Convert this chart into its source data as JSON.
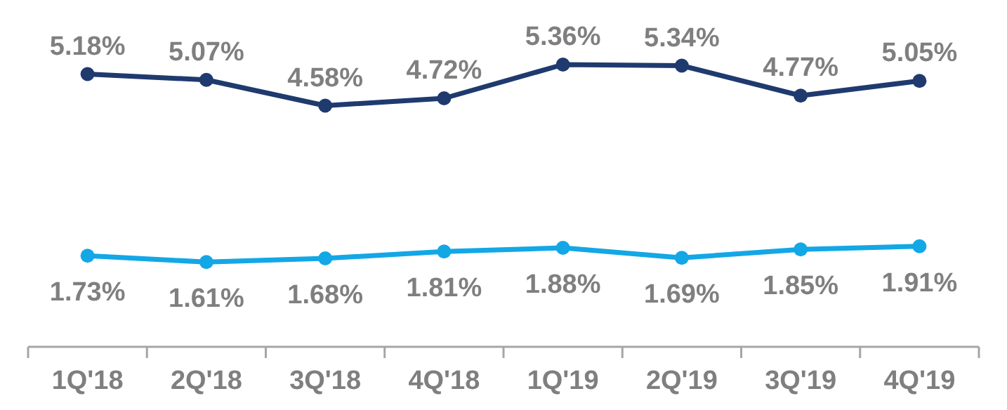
{
  "chart_data": {
    "type": "line",
    "categories": [
      "1Q'18",
      "2Q'18",
      "3Q'18",
      "4Q'18",
      "1Q'19",
      "2Q'19",
      "3Q'19",
      "4Q'19"
    ],
    "tick_labels": "x",
    "marker": "circle",
    "series": [
      {
        "color": "#1f3a6e",
        "values": [
          5.18,
          5.07,
          4.58,
          4.72,
          5.36,
          5.34,
          4.77,
          5.05
        ],
        "value_labels": [
          "5.18%",
          "5.07%",
          "4.58%",
          "4.72%",
          "5.36%",
          "5.34%",
          "4.77%",
          "5.05%"
        ]
      },
      {
        "color": "#13a7e6",
        "values": [
          1.73,
          1.61,
          1.68,
          1.81,
          1.88,
          1.69,
          1.85,
          1.91
        ],
        "value_labels": [
          "1.73%",
          "1.61%",
          "1.68%",
          "1.81%",
          "1.88%",
          "1.69%",
          "1.85%",
          "1.91%"
        ]
      }
    ]
  }
}
